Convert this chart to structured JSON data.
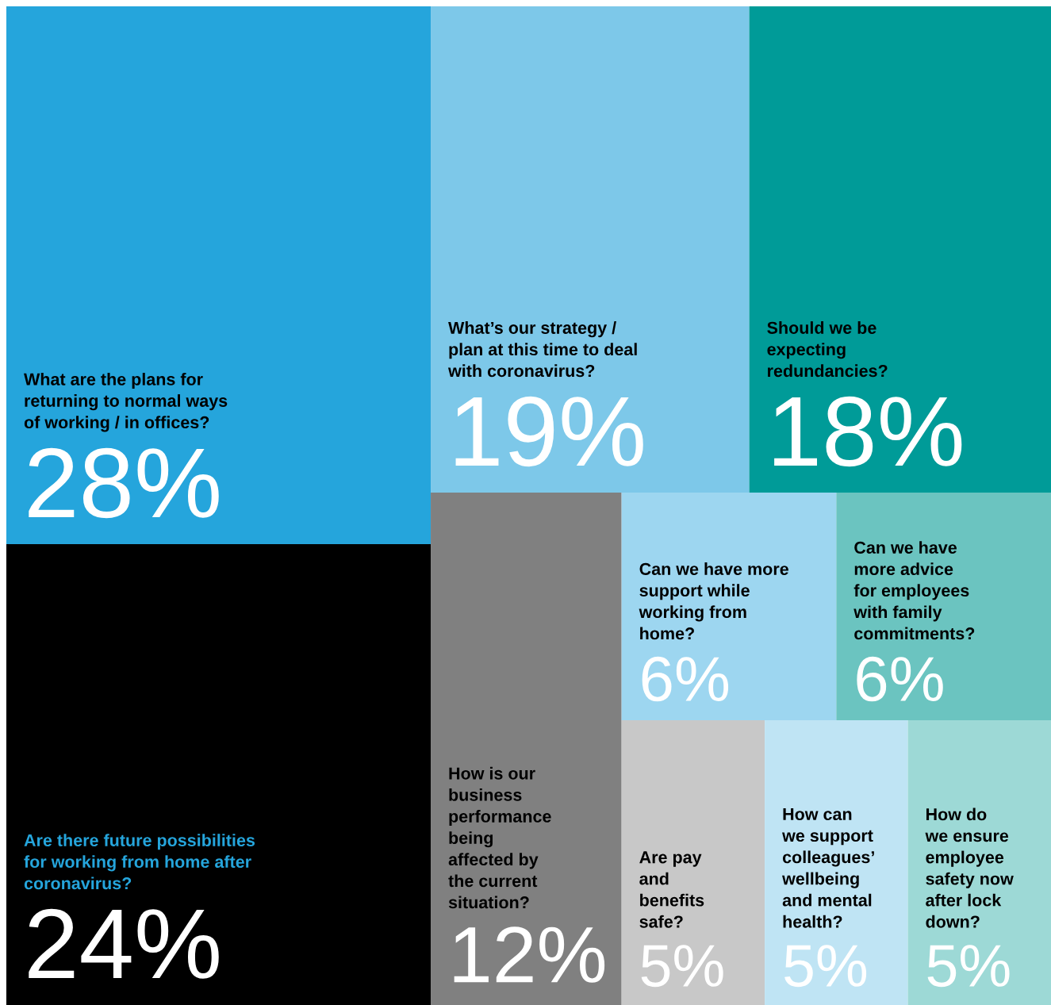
{
  "chart_data": {
    "type": "other",
    "categories": [
      "What are the plans for\nreturning to normal ways\nof working / in offices?",
      "Are there future possibilities\nfor working from home after\ncoronavirus?",
      "What’s our strategy /\nplan at this time to deal\nwith coronavirus?",
      "Should we be\nexpecting\nredundancies?",
      "How is our\nbusiness\nperformance\nbeing\naffected by\nthe current\nsituation?",
      "Can we have more\nsupport while\nworking from\nhome?",
      "Can we have\nmore advice\nfor employees\nwith family\ncommitments?",
      "Are pay\nand\nbenefits\nsafe?",
      "How can\nwe support\ncolleagues’\nwellbeing\nand mental\nhealth?",
      "How do\nwe ensure\nemployee\nsafety now\nafter lock\ndown?"
    ],
    "values": [
      28,
      24,
      19,
      18,
      12,
      6,
      6,
      5,
      5,
      5
    ],
    "value_labels": [
      "28%",
      "24%",
      "19%",
      "18%",
      "12%",
      "6%",
      "6%",
      "5%",
      "5%",
      "5%"
    ],
    "colors": [
      "#25a5dc",
      "#000000",
      "#7dc8e9",
      "#009b98",
      "#808080",
      "#9dd6f0",
      "#6bc4c0",
      "#c8c8c8",
      "#bfe4f4",
      "#9dd9d6"
    ]
  }
}
